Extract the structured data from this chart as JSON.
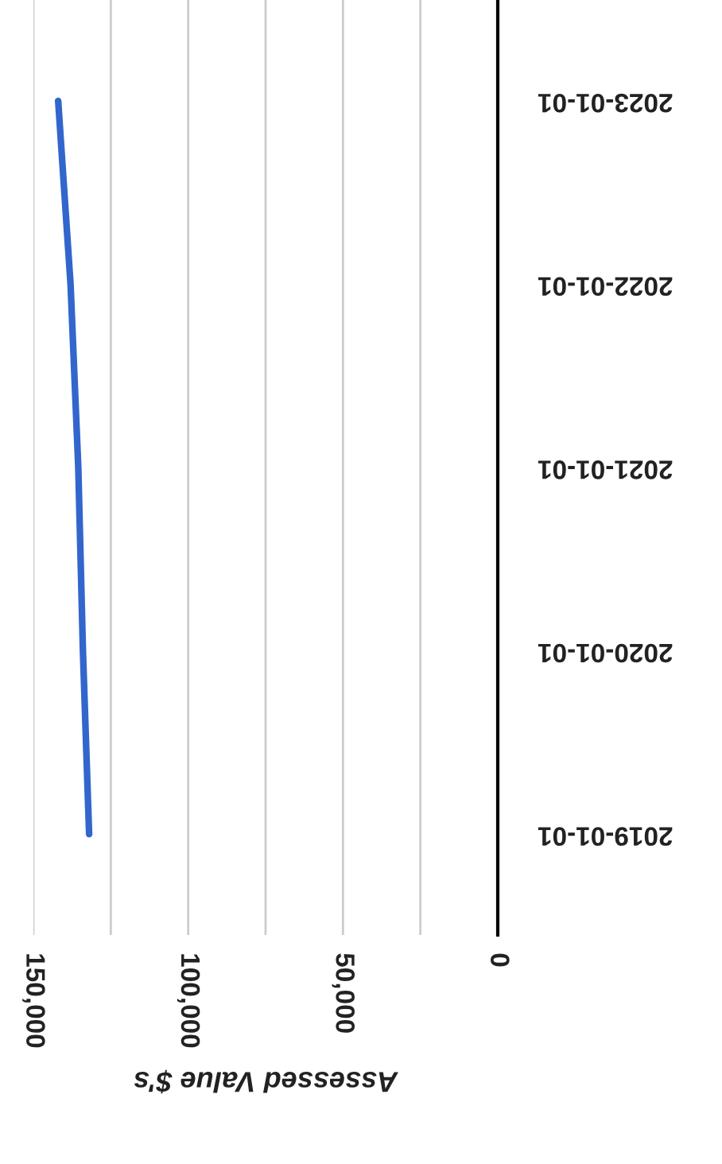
{
  "chart_data": {
    "type": "line",
    "orientation": "horizontal",
    "xlabel": "Assessed Value $'s",
    "categories": [
      "2023-01-01",
      "2022-01-01",
      "2021-01-01",
      "2020-01-01",
      "2019-01-01"
    ],
    "series": [
      {
        "color": "#3366cc",
        "values": [
          142000,
          138000,
          135500,
          134000,
          132000
        ]
      }
    ],
    "xlim": [
      150000,
      0
    ],
    "xticks": [
      {
        "value": 0,
        "label": "0"
      },
      {
        "value": 25000,
        "label": null
      },
      {
        "value": 50000,
        "label": "50,000"
      },
      {
        "value": 75000,
        "label": null
      },
      {
        "value": 100000,
        "label": "100,000"
      },
      {
        "value": 125000,
        "label": null
      },
      {
        "value": 150000,
        "label": "150,000"
      }
    ],
    "grid": "x",
    "marker": "none",
    "line_style": "solid"
  }
}
